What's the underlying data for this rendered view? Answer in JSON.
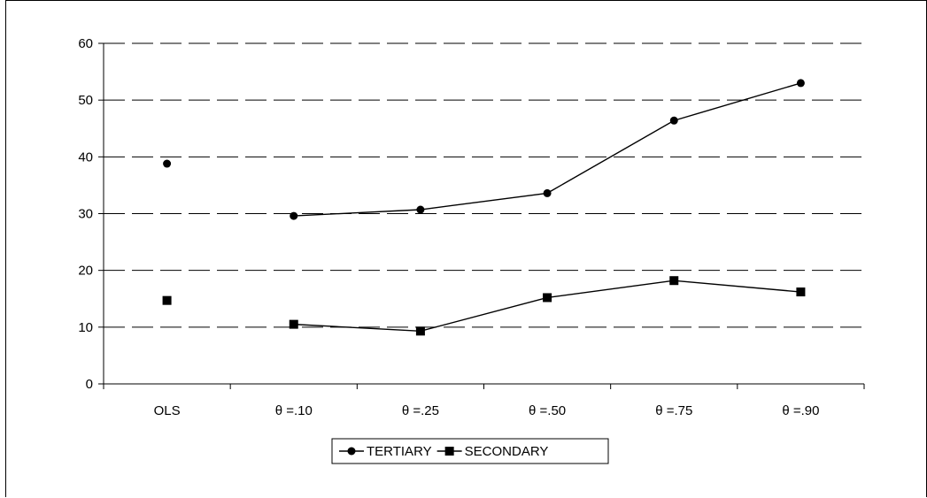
{
  "chart_data": {
    "type": "line",
    "categories": [
      "OLS",
      "θ =.10",
      "θ =.25",
      "θ =.50",
      "θ =.75",
      "θ =.90"
    ],
    "ylim": [
      0,
      60
    ],
    "yticks": [
      0,
      10,
      20,
      30,
      40,
      50,
      60
    ],
    "grid": true,
    "legend_position": "bottom",
    "series": [
      {
        "name": "TERTIARY",
        "marker": "circle",
        "values": [
          38.8,
          29.6,
          30.7,
          33.6,
          46.4,
          53.0
        ],
        "connected_from_index": 1,
        "color": "#000000"
      },
      {
        "name": "SECONDARY",
        "marker": "square",
        "values": [
          14.7,
          10.5,
          9.3,
          15.2,
          18.2,
          16.2
        ],
        "connected_from_index": 1,
        "color": "#000000"
      }
    ]
  }
}
